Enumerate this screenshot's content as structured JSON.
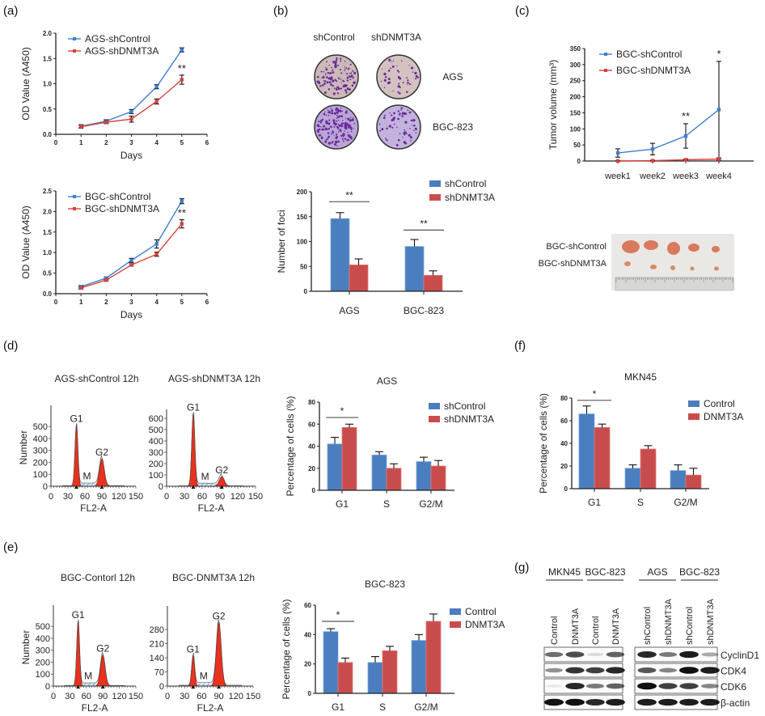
{
  "panel_labels": {
    "a": "(a)",
    "b": "(b)",
    "c": "(c)",
    "d": "(d)",
    "e": "(e)",
    "f": "(f)",
    "g": "(g)"
  },
  "colors": {
    "control": "#4a7ebf",
    "knockdown": "#c94c4c",
    "line_control": "#3b7fd0",
    "line_knockdown": "#d9413e",
    "flow_peak": "#e8321e",
    "flow_s": "#a9c9ee"
  },
  "colony": {
    "columns": [
      "shControl",
      "shDNMT3A"
    ],
    "rows": [
      "AGS",
      "BGC-823"
    ]
  },
  "tumor_photo": {
    "rows": [
      "BGC-shControl",
      "BGC-shDNMT3A"
    ]
  },
  "western": {
    "groups": [
      {
        "label": "MKN45",
        "lanes": [
          "Control",
          "DNMT3A"
        ]
      },
      {
        "label": "BGC-823",
        "lanes": [
          "Control",
          "DNMT3A"
        ]
      },
      {
        "label": "AGS",
        "lanes": [
          "shControl",
          "shDNMT3A"
        ]
      },
      {
        "label": "BGC-823",
        "lanes": [
          "shControl",
          "shDNMT3A"
        ]
      }
    ],
    "proteins": [
      "CyclinD1",
      "CDK4",
      "CDK6",
      "β-actin"
    ],
    "band_intensity": [
      [
        0.6,
        0.75,
        0.15,
        0.65,
        0.9,
        0.55,
        0.95,
        0.35
      ],
      [
        0.45,
        0.85,
        0.8,
        0.9,
        0.7,
        0.5,
        1.0,
        0.95
      ],
      [
        0.08,
        0.9,
        0.55,
        0.65,
        1.0,
        0.8,
        0.8,
        0.5
      ],
      [
        1.0,
        1.0,
        0.9,
        0.95,
        0.95,
        0.95,
        0.95,
        0.95
      ]
    ]
  },
  "chart_data": [
    {
      "type": "line",
      "xlabel": "Days",
      "ylabel": "OD Value (A450)",
      "xlim": [
        0,
        6
      ],
      "ylim": [
        0,
        2
      ],
      "xticks": [
        "0",
        "1",
        "2",
        "3",
        "4",
        "5",
        "6"
      ],
      "yticks": [
        "0.0",
        "0.5",
        "1.0",
        "1.5",
        "2.0"
      ],
      "x": [
        1,
        2,
        3,
        4,
        5
      ],
      "series": [
        {
          "name": "AGS-shControl",
          "values": [
            0.16,
            0.26,
            0.45,
            0.94,
            1.67
          ],
          "err": [
            0.03,
            0.03,
            0.04,
            0.04,
            0.04
          ]
        },
        {
          "name": "AGS-shDNMT3A",
          "values": [
            0.15,
            0.24,
            0.3,
            0.65,
            1.08
          ],
          "err": [
            0.03,
            0.03,
            0.06,
            0.05,
            0.09
          ]
        }
      ],
      "annotations": [
        {
          "x": 5,
          "text": "**"
        }
      ],
      "legend": "top-left"
    },
    {
      "type": "line",
      "xlabel": "Days",
      "ylabel": "OD Value (A450)",
      "xlim": [
        0,
        6
      ],
      "ylim": [
        0,
        2.5
      ],
      "xticks": [
        "0",
        "1",
        "2",
        "3",
        "4",
        "5",
        "6"
      ],
      "yticks": [
        "0.0",
        "0.5",
        "1.0",
        "1.5",
        "2.0",
        "2.5"
      ],
      "x": [
        1,
        2,
        3,
        4,
        5
      ],
      "series": [
        {
          "name": "BGC-shControl",
          "values": [
            0.17,
            0.38,
            0.81,
            1.21,
            2.25
          ],
          "err": [
            0.03,
            0.03,
            0.05,
            0.1,
            0.06
          ]
        },
        {
          "name": "BGC-shDNMT3A",
          "values": [
            0.14,
            0.33,
            0.7,
            0.96,
            1.7
          ],
          "err": [
            0.03,
            0.02,
            0.03,
            0.05,
            0.1
          ]
        }
      ],
      "annotations": [
        {
          "x": 5,
          "text": "**"
        }
      ],
      "legend": "top-left"
    },
    {
      "type": "bar",
      "ylabel": "Number of foci",
      "ylim": [
        0,
        200
      ],
      "yticks": [
        "0",
        "50",
        "100",
        "150",
        "200"
      ],
      "categories": [
        "AGS",
        "BGC-823"
      ],
      "series": [
        {
          "name": "shControl",
          "values": [
            146,
            90
          ],
          "err": [
            12,
            14
          ]
        },
        {
          "name": "shDNMT3A",
          "values": [
            53,
            32
          ],
          "err": [
            12,
            9
          ]
        }
      ],
      "significance": [
        {
          "category": 0,
          "text": "**",
          "y": 180
        },
        {
          "category": 1,
          "text": "**",
          "y": 123
        }
      ],
      "legend": "top-right"
    },
    {
      "type": "line",
      "ylabel": "Tumor volume (mm³)",
      "ylim": [
        0,
        350
      ],
      "yticks": [
        "0",
        "50",
        "100",
        "150",
        "200",
        "250",
        "300",
        "350"
      ],
      "categories": [
        "week1",
        "week2",
        "week3",
        "week4"
      ],
      "series": [
        {
          "name": "BGC-shControl",
          "values": [
            25,
            37,
            78,
            160
          ],
          "err": [
            13,
            18,
            38,
            150
          ]
        },
        {
          "name": "BGC-shDNMT3A",
          "values": [
            0,
            1,
            4,
            6
          ],
          "err": [
            1,
            1,
            2,
            3
          ]
        }
      ],
      "annotations": [
        {
          "x": 2,
          "text": "**"
        },
        {
          "x": 3,
          "text": "*"
        }
      ],
      "legend": "top-left"
    },
    {
      "type": "histogram",
      "title": "AGS-shControl  12h",
      "xlabel": "FL2-A",
      "ylabel": "Number",
      "xlim": [
        0,
        150
      ],
      "ylim": [
        0,
        650
      ],
      "xticks": [
        "0",
        "30",
        "60",
        "90",
        "120",
        "150"
      ],
      "yticks": [
        "0",
        "100",
        "200",
        "300",
        "400",
        "500"
      ],
      "peaks": [
        {
          "label": "G1",
          "x": 45,
          "height": 510
        },
        {
          "label": "G2",
          "x": 90,
          "height": 230
        }
      ],
      "s_label": "M"
    },
    {
      "type": "histogram",
      "title": "AGS-shDNMT3A 12h",
      "xlabel": "FL2-A",
      "xlim": [
        0,
        150
      ],
      "ylim": [
        0,
        650
      ],
      "xticks": [
        "0",
        "30",
        "60",
        "90",
        "120",
        "150"
      ],
      "yticks": [
        "0",
        "100",
        "200",
        "300",
        "400",
        "500",
        "600"
      ],
      "peaks": [
        {
          "label": "G1",
          "x": 45,
          "height": 640
        },
        {
          "label": "G2",
          "x": 93,
          "height": 85
        }
      ],
      "s_label": "M"
    },
    {
      "type": "bar",
      "title": "AGS",
      "ylabel": "Percentage of cells (%)",
      "ylim": [
        0,
        80
      ],
      "yticks": [
        "0",
        "20",
        "40",
        "60",
        "80"
      ],
      "categories": [
        "G1",
        "S",
        "G2/M"
      ],
      "series": [
        {
          "name": "shControl",
          "values": [
            42,
            32,
            26
          ],
          "err": [
            6,
            3,
            4
          ]
        },
        {
          "name": "shDNMT3A",
          "values": [
            57,
            20,
            22
          ],
          "err": [
            3,
            4,
            5
          ]
        }
      ],
      "significance": [
        {
          "category": 0,
          "text": "*",
          "y": 66
        }
      ],
      "legend": "top-right"
    },
    {
      "type": "bar",
      "title": "MKN45",
      "ylabel": "Percentage of cells (%)",
      "ylim": [
        0,
        80
      ],
      "yticks": [
        "0",
        "20",
        "40",
        "60",
        "80"
      ],
      "categories": [
        "G1",
        "S",
        "G2/M"
      ],
      "series": [
        {
          "name": "Control",
          "values": [
            66,
            18,
            16
          ],
          "err": [
            7,
            3,
            5
          ]
        },
        {
          "name": "DNMT3A",
          "values": [
            54,
            35,
            12
          ],
          "err": [
            3,
            3,
            6
          ]
        }
      ],
      "significance": [
        {
          "category": 0,
          "text": "*",
          "y": 78
        }
      ],
      "legend": "top-right"
    },
    {
      "type": "histogram",
      "title": "BGC-Contorl 12h",
      "xlabel": "FL2-A",
      "ylabel": "Number",
      "xlim": [
        0,
        150
      ],
      "ylim": [
        0,
        650
      ],
      "xticks": [
        "0",
        "30",
        "60",
        "90",
        "120",
        "150"
      ],
      "yticks": [
        "0",
        "100",
        "200",
        "300",
        "400",
        "500"
      ],
      "peaks": [
        {
          "label": "G1",
          "x": 45,
          "height": 540
        },
        {
          "label": "G2",
          "x": 90,
          "height": 260
        }
      ],
      "s_label": "M"
    },
    {
      "type": "histogram",
      "title": "BGC-DNMT3A 12h",
      "xlabel": "FL2-A",
      "xlim": [
        0,
        150
      ],
      "ylim": [
        0,
        380
      ],
      "xticks": [
        "0",
        "30",
        "60",
        "90",
        "120",
        "150"
      ],
      "yticks": [
        "0",
        "70",
        "140",
        "210",
        "280"
      ],
      "peaks": [
        {
          "label": "G1",
          "x": 45,
          "height": 150
        },
        {
          "label": "G2",
          "x": 90,
          "height": 315
        }
      ],
      "s_label": "M"
    },
    {
      "type": "bar",
      "title": "BGC-823",
      "ylabel": "Percentage of cells (%)",
      "ylim": [
        0,
        60
      ],
      "yticks": [
        "0",
        "20",
        "40",
        "60"
      ],
      "categories": [
        "G1",
        "S",
        "G2/M"
      ],
      "series": [
        {
          "name": "Control",
          "values": [
            42,
            21,
            36
          ],
          "err": [
            2,
            4,
            4
          ]
        },
        {
          "name": "DNMT3A",
          "values": [
            21,
            29,
            49
          ],
          "err": [
            3,
            3,
            5
          ]
        }
      ],
      "significance": [
        {
          "category": 0,
          "text": "*",
          "y": 49
        }
      ],
      "legend": "top-right"
    }
  ]
}
